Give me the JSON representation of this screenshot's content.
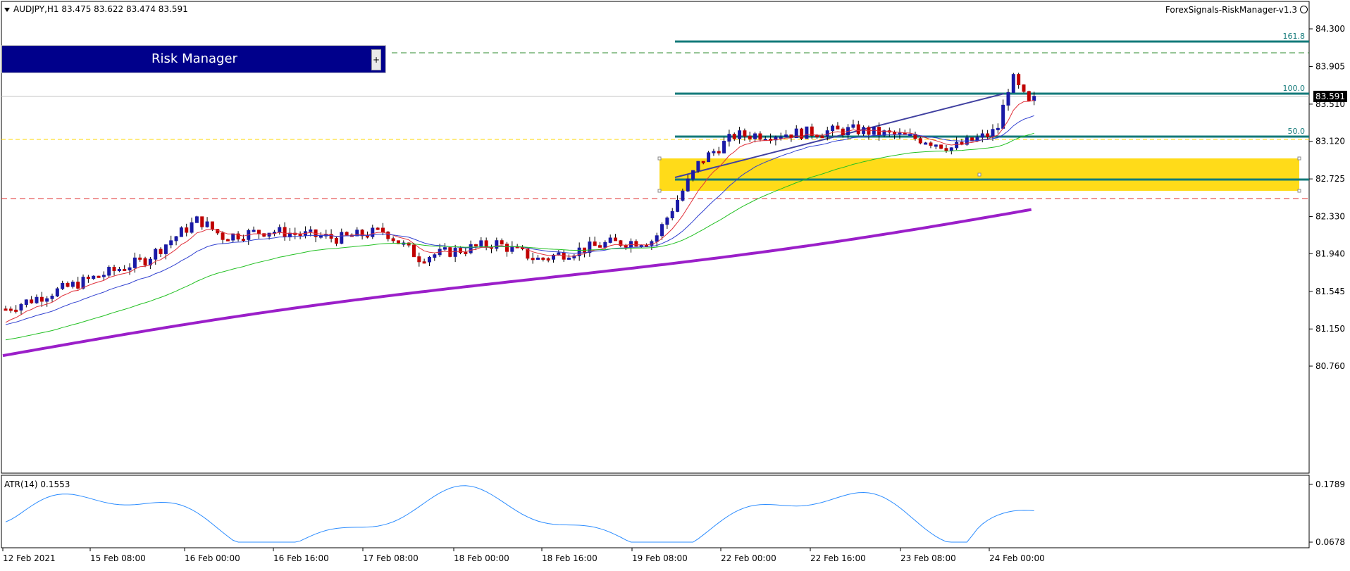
{
  "header": {
    "symbol_info": "AUDJPY,H1  83.475 83.622 83.474 83.591",
    "ea_name": "ForexSignals-RiskManager-v1.3"
  },
  "panel": {
    "title": "Risk Manager",
    "toggle_label": "+"
  },
  "price_axis": {
    "labels": [
      "84.300",
      "83.905",
      "83.510",
      "83.120",
      "82.725",
      "82.330",
      "81.940",
      "81.545",
      "81.150",
      "80.760"
    ],
    "current_price": "83.591"
  },
  "fib_labels": [
    "161.8",
    "100.0",
    "50.0"
  ],
  "indicator": {
    "label": "ATR(14) 0.1553",
    "axis_labels": [
      "0.1789",
      "0.0678"
    ]
  },
  "time_axis": {
    "labels": [
      "12 Feb 2021",
      "15 Feb 08:00",
      "16 Feb 00:00",
      "16 Feb 16:00",
      "17 Feb 08:00",
      "18 Feb 00:00",
      "18 Feb 16:00",
      "19 Feb 08:00",
      "22 Feb 00:00",
      "22 Feb 16:00",
      "23 Feb 08:00",
      "24 Feb 00:00"
    ]
  },
  "colors": {
    "bull": "#1a1aa6",
    "bear": "#c00000",
    "ema_fast": "#e0303a",
    "ema_mid": "#3040d0",
    "ema_slow": "#22c022",
    "ma_long": "#9b1fc9",
    "fib_line": "#137a7a",
    "zone": "#ffd700",
    "atr_line": "#2b8cff"
  }
}
